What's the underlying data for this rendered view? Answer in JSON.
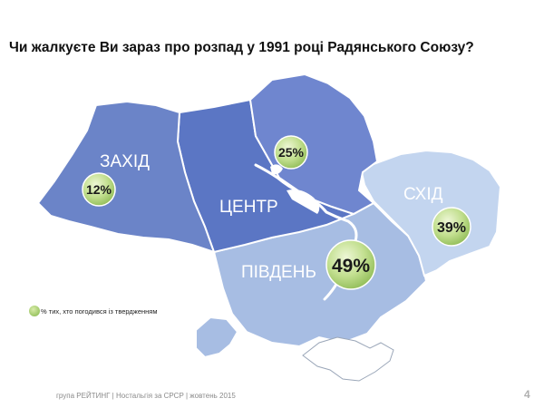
{
  "title": "Чи жалкуєте Ви зараз про розпад у 1991 році Радянського Союзу?",
  "regions": {
    "west": {
      "name": "ЗАХІД",
      "value": "12%",
      "color": "#6b84c8"
    },
    "center": {
      "name": "ЦЕНТР",
      "value": "25%",
      "color": "#5b76c4"
    },
    "south": {
      "name": "ПІВДЕНЬ",
      "value": "49%",
      "color": "#a7bde3"
    },
    "east": {
      "name": "СХІД",
      "value": "39%",
      "color": "#c3d5ef"
    }
  },
  "legend": {
    "text": "% тих, хто погодився із твердженням"
  },
  "footer": {
    "text": "група РЕЙТИНГ  |  Ностальгія за СРСР  |  жовтень 2015"
  },
  "page_number": "4"
}
